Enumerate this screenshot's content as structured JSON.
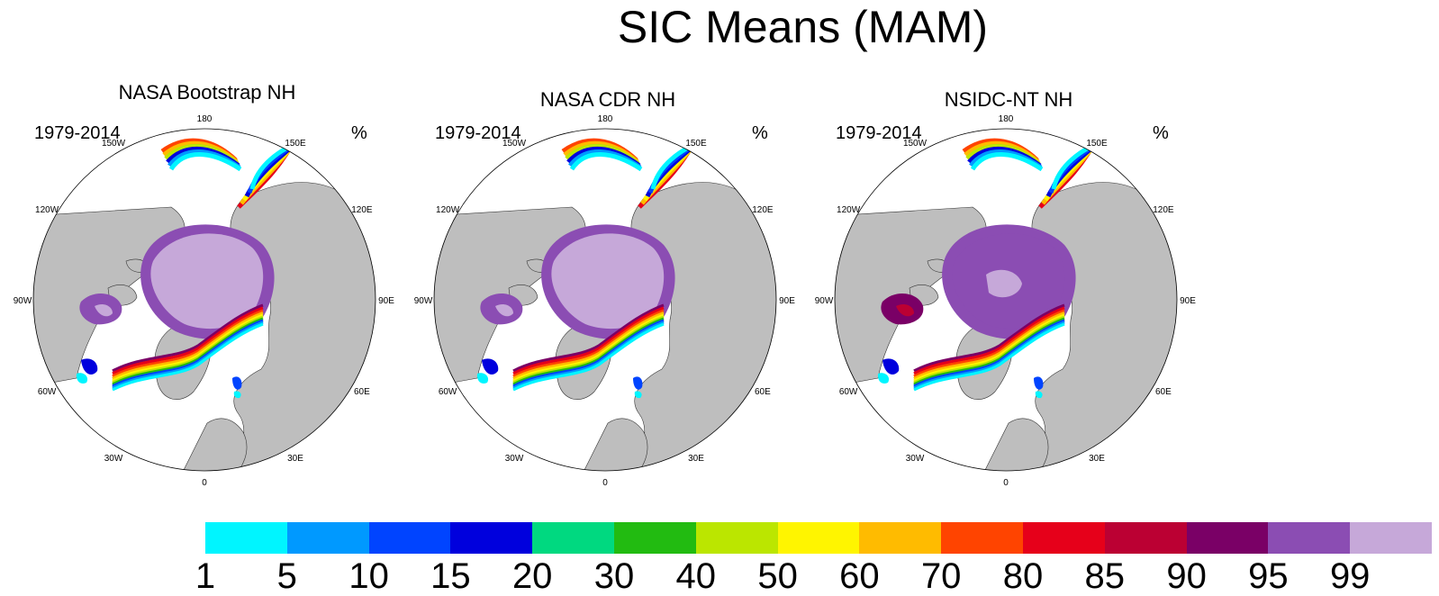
{
  "title": "SIC Means (MAM)",
  "panels": [
    {
      "title": "NASA Bootstrap NH",
      "period": "1979-2014",
      "units": "%"
    },
    {
      "title": "NASA CDR NH",
      "period": "1979-2014",
      "units": "%"
    },
    {
      "title": "NSIDC-NT NH",
      "period": "1979-2014",
      "units": "%"
    }
  ],
  "longitude_labels": [
    "180",
    "150E",
    "120E",
    "90E",
    "60E",
    "30E",
    "0",
    "30W",
    "60W",
    "90W",
    "120W",
    "150W"
  ],
  "colorbar": {
    "labels": [
      "1",
      "5",
      "10",
      "15",
      "20",
      "30",
      "40",
      "50",
      "60",
      "70",
      "80",
      "85",
      "90",
      "95",
      "99"
    ],
    "colors": [
      "#00F5FF",
      "#0099FF",
      "#0044FF",
      "#0000DD",
      "#00D980",
      "#22BB11",
      "#BBE600",
      "#FFF500",
      "#FFBB00",
      "#FF4400",
      "#E6001A",
      "#BB0033",
      "#7A0066",
      "#8B4DB3",
      "#C6A8D9"
    ]
  },
  "colors": {
    "land": "#BEBEBE",
    "ocean": "#FFFFFF",
    "coast": "#000000"
  }
}
